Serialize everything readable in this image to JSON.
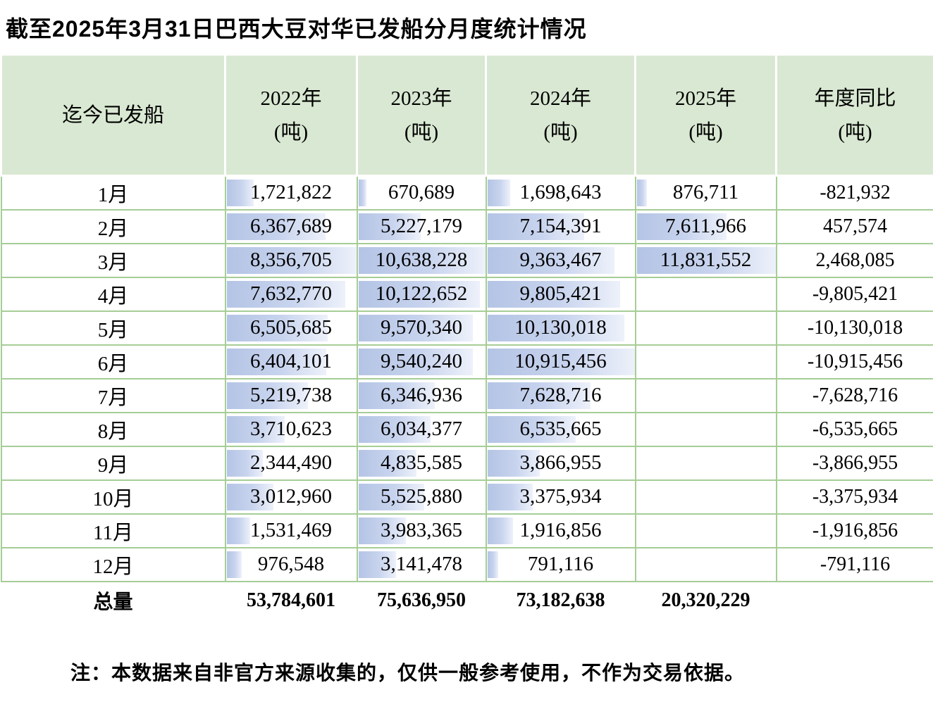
{
  "title": "截至2025年3月31日巴西大豆对华已发船分月度统计情况",
  "note": "注：本数据来自非官方来源收集的，仅供一般参考使用，不作为交易依据。",
  "colors": {
    "header_bg": "#d9e8d2",
    "grid_line": "#a6cd96",
    "data_bar_start": "#b4c4e5",
    "data_bar_end": "#edf1fa"
  },
  "chart_data": {
    "type": "table",
    "title": "截至2025年3月31日巴西大豆对华已发船分月度统计情况",
    "row_header": "迄今已发船",
    "columns": [
      {
        "label": "2022年",
        "unit": "(吨)"
      },
      {
        "label": "2023年",
        "unit": "(吨)"
      },
      {
        "label": "2024年",
        "unit": "(吨)"
      },
      {
        "label": "2025年",
        "unit": "(吨)"
      },
      {
        "label": "年度同比",
        "unit": "(吨)"
      }
    ],
    "data_bars": {
      "style": "gradient-blue",
      "scaling": "per-column-max"
    },
    "rows": [
      {
        "month": "1月",
        "values": [
          1721822,
          670689,
          1698643,
          876711
        ],
        "yoy": -821932
      },
      {
        "month": "2月",
        "values": [
          6367689,
          5227179,
          7154391,
          7611966
        ],
        "yoy": 457574
      },
      {
        "month": "3月",
        "values": [
          8356705,
          10638228,
          9363467,
          11831552
        ],
        "yoy": 2468085
      },
      {
        "month": "4月",
        "values": [
          7632770,
          10122652,
          9805421,
          null
        ],
        "yoy": -9805421
      },
      {
        "month": "5月",
        "values": [
          6505685,
          9570340,
          10130018,
          null
        ],
        "yoy": -10130018
      },
      {
        "month": "6月",
        "values": [
          6404101,
          9540240,
          10915456,
          null
        ],
        "yoy": -10915456
      },
      {
        "month": "7月",
        "values": [
          5219738,
          6346936,
          7628716,
          null
        ],
        "yoy": -7628716
      },
      {
        "month": "8月",
        "values": [
          3710623,
          6034377,
          6535665,
          null
        ],
        "yoy": -6535665
      },
      {
        "month": "9月",
        "values": [
          2344490,
          4835585,
          3866955,
          null
        ],
        "yoy": -3866955
      },
      {
        "month": "10月",
        "values": [
          3012960,
          5525880,
          3375934,
          null
        ],
        "yoy": -3375934
      },
      {
        "month": "11月",
        "values": [
          1531469,
          3983365,
          1916856,
          null
        ],
        "yoy": -1916856
      },
      {
        "month": "12月",
        "values": [
          976548,
          3141478,
          791116,
          null
        ],
        "yoy": -791116
      }
    ],
    "total": {
      "label": "总量",
      "values": [
        53784601,
        75636950,
        73182638,
        20320229
      ],
      "yoy": null
    }
  }
}
